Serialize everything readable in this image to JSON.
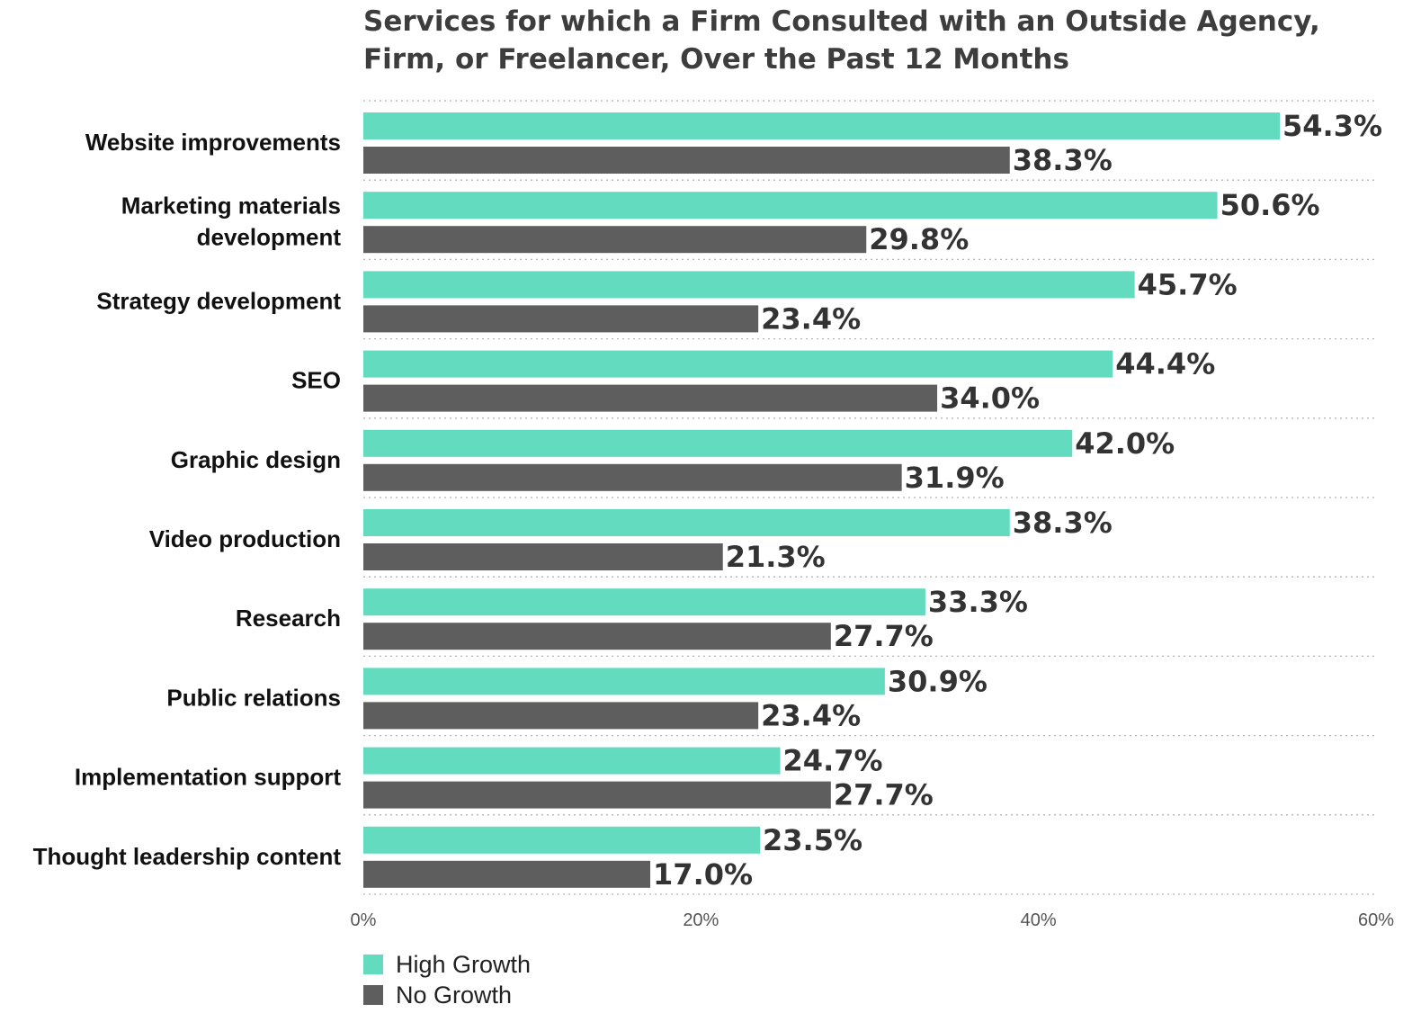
{
  "chart_data": {
    "type": "bar",
    "orientation": "horizontal",
    "title_lines": [
      "Services for which a Firm Consulted with an Outside Agency,",
      "Firm, or Freelancer, Over the Past 12 Months"
    ],
    "categories": [
      [
        "Website improvements"
      ],
      [
        "Marketing materials",
        "development"
      ],
      [
        "Strategy development"
      ],
      [
        "SEO"
      ],
      [
        "Graphic design"
      ],
      [
        "Video production"
      ],
      [
        "Research"
      ],
      [
        "Public relations"
      ],
      [
        "Implementation support"
      ],
      [
        "Thought leadership content"
      ]
    ],
    "series": [
      {
        "name": "High Growth",
        "color": "#63dbbf",
        "values": [
          54.3,
          50.6,
          45.7,
          44.4,
          42.0,
          38.3,
          33.3,
          30.9,
          24.7,
          23.5
        ],
        "labels": [
          "54.3%",
          "50.6%",
          "45.7%",
          "44.4%",
          "42.0%",
          "38.3%",
          "33.3%",
          "30.9%",
          "24.7%",
          "23.5%"
        ]
      },
      {
        "name": "No Growth",
        "color": "#5e5e5e",
        "values": [
          38.3,
          29.8,
          23.4,
          34.0,
          31.9,
          21.3,
          27.7,
          23.4,
          27.7,
          17.0
        ],
        "labels": [
          "38.3%",
          "29.8%",
          "23.4%",
          "34.0%",
          "31.9%",
          "21.3%",
          "27.7%",
          "23.4%",
          "27.7%",
          "17.0%"
        ]
      }
    ],
    "xlim": [
      0,
      60
    ],
    "xticks": [
      0,
      20,
      40,
      60
    ],
    "xtick_labels": [
      "0%",
      "20%",
      "40%",
      "60%"
    ],
    "grid": true,
    "legend_position": "bottom-left"
  }
}
